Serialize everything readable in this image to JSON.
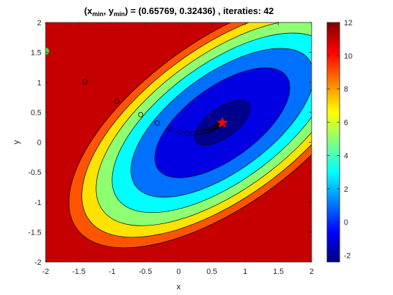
{
  "chart_data": {
    "type": "contour",
    "title": {
      "prefix": "(x",
      "sub_x": "min",
      "mid": ", y",
      "sub_y": "min",
      "suffix": ") = (0.65769, 0.32436) , iteraties: 42"
    },
    "xlabel": "x",
    "ylabel": "y",
    "xlim": [
      -2,
      2
    ],
    "ylim": [
      -2,
      2
    ],
    "xticks": [
      -2,
      -1.5,
      -1,
      -0.5,
      0,
      0.5,
      1,
      1.5,
      2
    ],
    "xtick_labels": [
      "-2",
      "-1.5",
      "-1",
      "-0.5",
      "0",
      "0.5",
      "1",
      "1.5",
      "2"
    ],
    "yticks": [
      -2,
      -1.5,
      -1,
      -0.5,
      0,
      0.5,
      1,
      1.5,
      2
    ],
    "ytick_labels": [
      "-2",
      "-1.5",
      "-1",
      "-0.5",
      "0",
      "0.5",
      "1",
      "1.5",
      "2"
    ],
    "colorbar": {
      "colormap": "jet",
      "range": [
        -2.4,
        12
      ],
      "ticks": [
        -2,
        0,
        2,
        4,
        6,
        8,
        10,
        12
      ],
      "tick_labels": [
        "-2",
        "0",
        "2",
        "4",
        "6",
        "8",
        "10",
        "12"
      ]
    },
    "contour_levels": [
      -2,
      0,
      2,
      4,
      6,
      8,
      10
    ],
    "minimum": {
      "x": 0.65769,
      "y": 0.32436,
      "value": -2.4,
      "marker": "star",
      "color": "#ff0000"
    },
    "start_point": {
      "x": -2,
      "y": 1.52,
      "marker": "filled-circle",
      "color": "#33ee33"
    },
    "iterations": 42,
    "path_points": [
      {
        "x": -1.41,
        "y": 1.01
      },
      {
        "x": -0.93,
        "y": 0.68
      },
      {
        "x": -0.57,
        "y": 0.46
      },
      {
        "x": -0.32,
        "y": 0.32
      },
      {
        "x": -0.13,
        "y": 0.22
      },
      {
        "x": 0.02,
        "y": 0.17
      },
      {
        "x": 0.13,
        "y": 0.15
      },
      {
        "x": 0.22,
        "y": 0.15
      },
      {
        "x": 0.3,
        "y": 0.16
      },
      {
        "x": 0.36,
        "y": 0.17
      },
      {
        "x": 0.41,
        "y": 0.18
      },
      {
        "x": 0.45,
        "y": 0.19
      },
      {
        "x": 0.48,
        "y": 0.21
      },
      {
        "x": 0.51,
        "y": 0.22
      },
      {
        "x": 0.53,
        "y": 0.24
      },
      {
        "x": 0.55,
        "y": 0.25
      },
      {
        "x": 0.57,
        "y": 0.26
      },
      {
        "x": 0.585,
        "y": 0.275
      },
      {
        "x": 0.6,
        "y": 0.285
      },
      {
        "x": 0.61,
        "y": 0.293
      },
      {
        "x": 0.62,
        "y": 0.3
      },
      {
        "x": 0.627,
        "y": 0.305
      },
      {
        "x": 0.633,
        "y": 0.309
      },
      {
        "x": 0.638,
        "y": 0.312
      },
      {
        "x": 0.642,
        "y": 0.315
      },
      {
        "x": 0.645,
        "y": 0.317
      },
      {
        "x": 0.648,
        "y": 0.319
      },
      {
        "x": 0.65,
        "y": 0.32
      },
      {
        "x": 0.652,
        "y": 0.321
      },
      {
        "x": 0.653,
        "y": 0.322
      },
      {
        "x": 0.654,
        "y": 0.3225
      },
      {
        "x": 0.655,
        "y": 0.323
      },
      {
        "x": 0.6555,
        "y": 0.3233
      },
      {
        "x": 0.656,
        "y": 0.3236
      },
      {
        "x": 0.6565,
        "y": 0.3238
      },
      {
        "x": 0.6568,
        "y": 0.324
      },
      {
        "x": 0.6571,
        "y": 0.3241
      },
      {
        "x": 0.6573,
        "y": 0.3242
      },
      {
        "x": 0.6575,
        "y": 0.3243
      }
    ]
  }
}
